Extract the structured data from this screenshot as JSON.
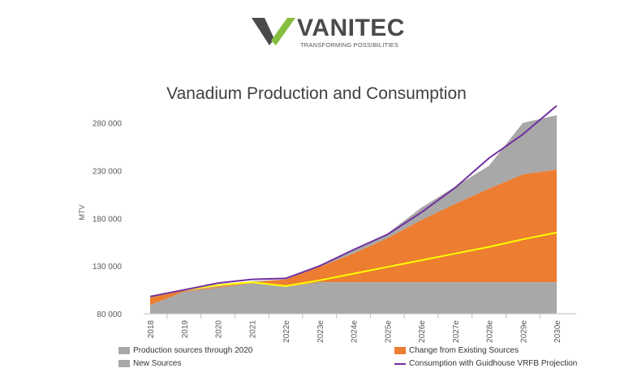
{
  "logo": {
    "brand": "VANITEC",
    "tagline": "TRANSFORMING POSSIBILITIES"
  },
  "colors": {
    "production": "#a8a8a8",
    "new_sources": "#a8a8a8",
    "change": "#ed7d31",
    "consumption": "#7030a0",
    "yellow_line": "#ffff00"
  },
  "chart_data": {
    "type": "area",
    "title": "Vanadium Production and Consumption",
    "ylabel": "MTV",
    "xlabel": "",
    "ylim": [
      80000,
      300000
    ],
    "yticks": [
      80000,
      130000,
      180000,
      230000,
      280000
    ],
    "ytick_labels": [
      "80 000",
      "130 000",
      "180 000",
      "230 000",
      "280 000"
    ],
    "grid": false,
    "legend_position": "bottom",
    "categories": [
      "2018",
      "2019",
      "2020",
      "2021",
      "2022e",
      "2023e",
      "2024e",
      "2025e",
      "2026e",
      "2027e",
      "2028e",
      "2029e",
      "2030e"
    ],
    "series": [
      {
        "name": "Production sources through 2020",
        "kind": "area",
        "values": [
          89000,
          103000,
          107000,
          112000,
          108000,
          113000,
          113000,
          113000,
          113000,
          113000,
          113000,
          113000,
          113000
        ]
      },
      {
        "name": "Change from Existing Sources",
        "kind": "area",
        "values": [
          97000,
          104000,
          108000,
          113000,
          116000,
          129000,
          143000,
          159000,
          178000,
          195000,
          211000,
          226000,
          231000
        ]
      },
      {
        "name": "New Sources",
        "kind": "area",
        "values": [
          98000,
          104000,
          109000,
          114000,
          116000,
          131000,
          146000,
          164000,
          191000,
          213000,
          235000,
          280000,
          288000
        ]
      },
      {
        "name": "Consumption with Guidhouse VRFB Projection",
        "kind": "line",
        "values": [
          98000,
          105000,
          112000,
          116000,
          117000,
          130000,
          147000,
          163000,
          186000,
          212000,
          243000,
          268000,
          298000
        ]
      }
    ],
    "unlabeled_line": {
      "values": [
        98000,
        105000,
        110000,
        113000,
        109000,
        115000,
        122000,
        129000,
        136000,
        143000,
        150000,
        158000,
        165000
      ]
    }
  }
}
